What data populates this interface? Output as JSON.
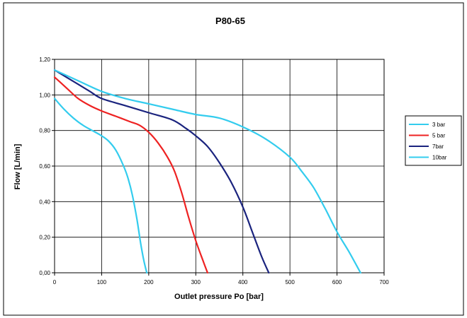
{
  "chart_data": {
    "type": "line",
    "title": "P80-65",
    "xlabel": "Outlet pressure Po [bar]",
    "ylabel": "Flow [L/min]",
    "xlim": [
      0,
      700
    ],
    "ylim": [
      0,
      1.2
    ],
    "xticks": [
      "0",
      "100",
      "200",
      "300",
      "400",
      "500",
      "600",
      "700"
    ],
    "yticks": [
      "0,00",
      "0,20",
      "0,40",
      "0,60",
      "0,80",
      "1,00",
      "1,20"
    ],
    "grid": true,
    "legend_position": "right",
    "series": [
      {
        "name": "3 bar",
        "color": "#33ccee",
        "x": [
          0,
          20,
          40,
          60,
          80,
          100,
          115,
          130,
          145,
          155,
          165,
          175,
          182,
          188,
          193,
          196
        ],
        "y": [
          0.98,
          0.92,
          0.87,
          0.83,
          0.8,
          0.77,
          0.74,
          0.69,
          0.61,
          0.54,
          0.44,
          0.3,
          0.18,
          0.09,
          0.03,
          0.0
        ]
      },
      {
        "name": "5 bar",
        "color": "#ee2222",
        "x": [
          0,
          25,
          50,
          75,
          100,
          130,
          160,
          180,
          200,
          220,
          240,
          255,
          270,
          285,
          300,
          315,
          325
        ],
        "y": [
          1.1,
          1.04,
          0.98,
          0.94,
          0.91,
          0.88,
          0.85,
          0.83,
          0.79,
          0.73,
          0.65,
          0.57,
          0.45,
          0.31,
          0.18,
          0.07,
          0.0
        ]
      },
      {
        "name": "7bar",
        "color": "#1a237e",
        "x": [
          0,
          25,
          50,
          75,
          100,
          150,
          200,
          250,
          280,
          300,
          325,
          350,
          375,
          400,
          420,
          440,
          455
        ],
        "y": [
          1.14,
          1.1,
          1.06,
          1.02,
          0.98,
          0.94,
          0.9,
          0.86,
          0.81,
          0.77,
          0.71,
          0.62,
          0.51,
          0.37,
          0.23,
          0.09,
          0.0
        ]
      },
      {
        "name": "10bar",
        "color": "#33ccee",
        "x": [
          0,
          50,
          100,
          150,
          200,
          250,
          300,
          350,
          400,
          450,
          500,
          525,
          550,
          575,
          600,
          625,
          650
        ],
        "y": [
          1.14,
          1.08,
          1.02,
          0.98,
          0.95,
          0.92,
          0.89,
          0.87,
          0.82,
          0.75,
          0.65,
          0.57,
          0.48,
          0.36,
          0.23,
          0.12,
          0.0
        ]
      }
    ]
  }
}
